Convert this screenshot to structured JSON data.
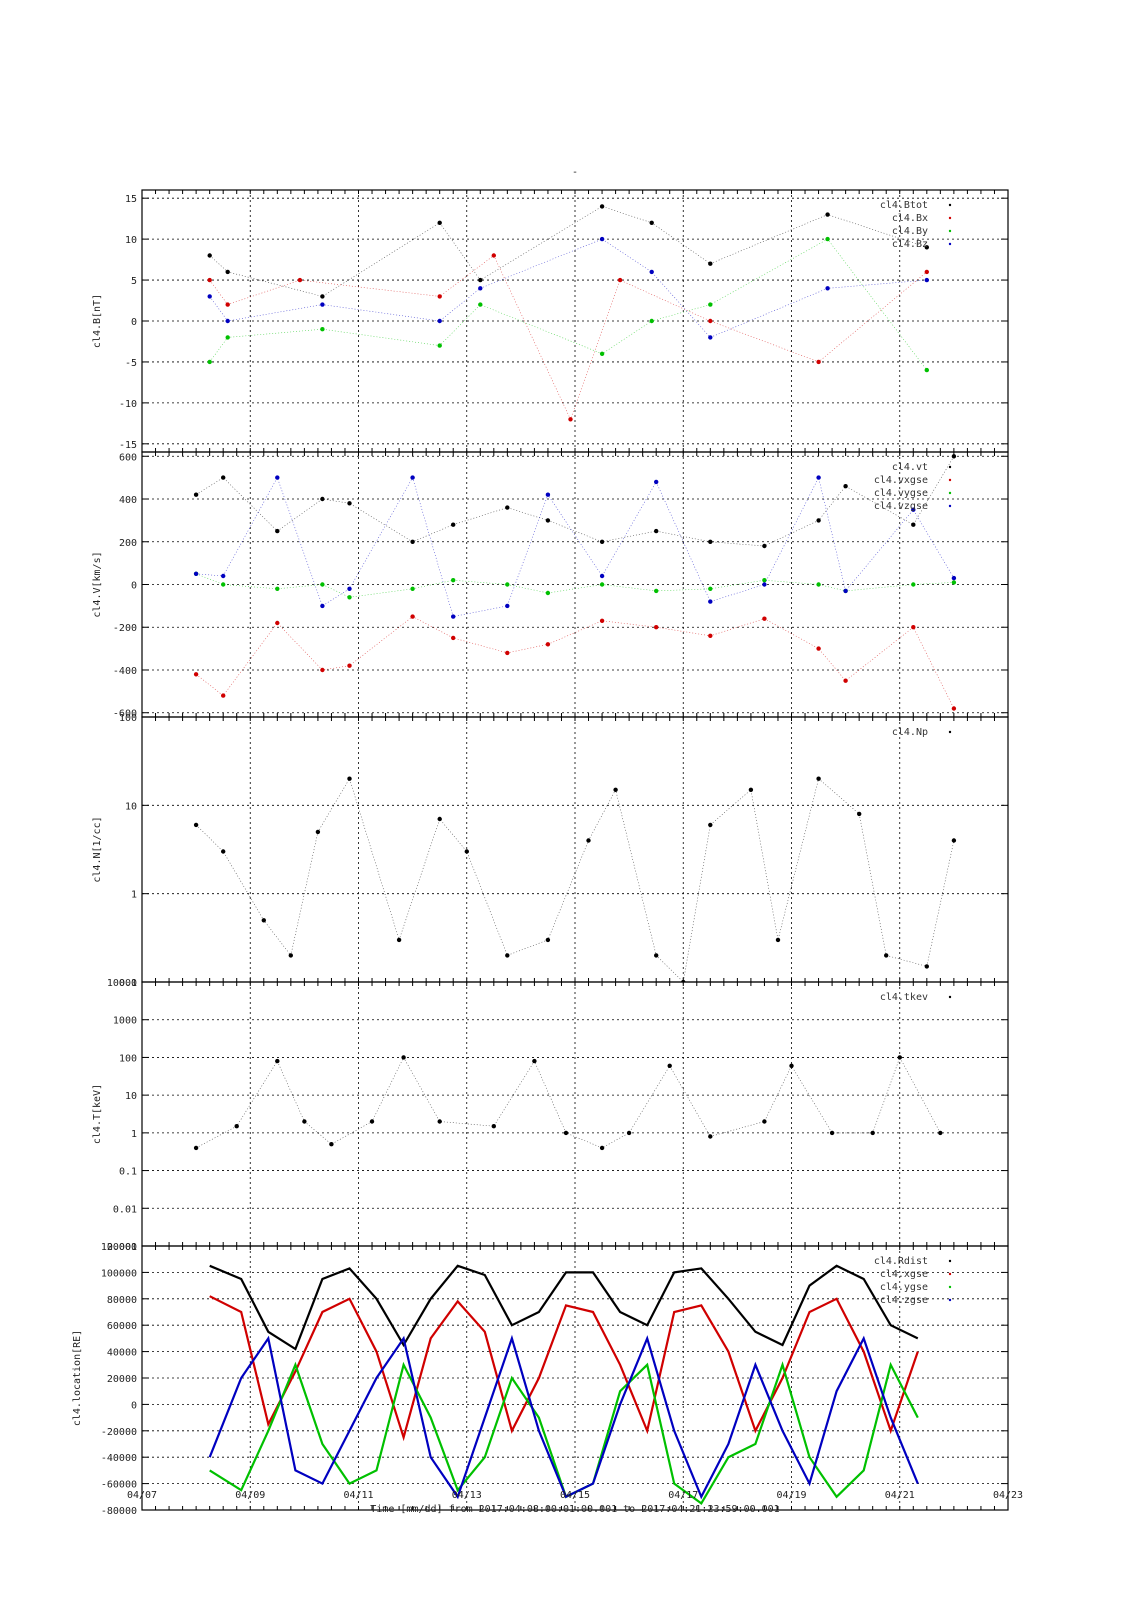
{
  "figure": {
    "title": "-",
    "xlabel": "Time [mm/dd]  from 2017:04:08:00:01:00.001  to  2017:04:21:23:59:00.001",
    "x_tick_labels": [
      "04/07",
      "04/09",
      "04/11",
      "04/13",
      "04/15",
      "04/17",
      "04/19",
      "04/21",
      "04/23"
    ],
    "colors": {
      "black": "#000000",
      "red": "#d00000",
      "green": "#00c000",
      "blue": "#0000c0"
    }
  },
  "chart_data": [
    {
      "type": "scatter",
      "ylabel": "cl4.B[nT]",
      "ylim": [
        -16,
        16
      ],
      "yscale": "linear",
      "y_tick_labels": [
        "15",
        "10",
        "5",
        "0",
        "-5",
        "-10",
        "-15"
      ],
      "y_ticks": [
        15,
        10,
        5,
        0,
        -5,
        -10,
        -15
      ],
      "x_range": [
        "2017-04-07",
        "2017-04-23"
      ],
      "legend": [
        "cl4.Btot",
        "cl4.Bx",
        "cl4.By",
        "cl4.Bz"
      ],
      "series": [
        {
          "name": "cl4.Btot",
          "color": "#000000",
          "x": [
            "2017-04-08 06:00",
            "2017-04-08 14:00",
            "2017-04-10 08:00",
            "2017-04-12 12:00",
            "2017-04-13 06:00",
            "2017-04-15 12:00",
            "2017-04-16 10:00",
            "2017-04-17 12:00",
            "2017-04-19 16:00",
            "2017-04-21 12:00"
          ],
          "y": [
            8,
            6,
            3,
            12,
            5,
            14,
            12,
            7,
            13,
            9
          ]
        },
        {
          "name": "cl4.Bx",
          "color": "#d00000",
          "x": [
            "2017-04-08 06:00",
            "2017-04-08 14:00",
            "2017-04-09 22:00",
            "2017-04-12 12:00",
            "2017-04-13 12:00",
            "2017-04-14 22:00",
            "2017-04-15 20:00",
            "2017-04-17 12:00",
            "2017-04-19 12:00",
            "2017-04-21 12:00"
          ],
          "y": [
            5,
            2,
            5,
            3,
            8,
            -12,
            5,
            0,
            -5,
            6
          ]
        },
        {
          "name": "cl4.By",
          "color": "#00c000",
          "x": [
            "2017-04-08 06:00",
            "2017-04-08 14:00",
            "2017-04-10 08:00",
            "2017-04-12 12:00",
            "2017-04-13 06:00",
            "2017-04-15 12:00",
            "2017-04-16 10:00",
            "2017-04-17 12:00",
            "2017-04-19 16:00",
            "2017-04-21 12:00"
          ],
          "y": [
            -5,
            -2,
            -1,
            -3,
            2,
            -4,
            0,
            2,
            10,
            -6
          ]
        },
        {
          "name": "cl4.Bz",
          "color": "#0000c0",
          "x": [
            "2017-04-08 06:00",
            "2017-04-08 14:00",
            "2017-04-10 08:00",
            "2017-04-12 12:00",
            "2017-04-13 06:00",
            "2017-04-15 12:00",
            "2017-04-16 10:00",
            "2017-04-17 12:00",
            "2017-04-19 16:00",
            "2017-04-21 12:00"
          ],
          "y": [
            3,
            0,
            2,
            0,
            4,
            10,
            6,
            -2,
            4,
            5
          ]
        }
      ]
    },
    {
      "type": "scatter",
      "ylabel": "cl4.V[km/s]",
      "ylim": [
        -620,
        620
      ],
      "yscale": "linear",
      "y_tick_labels": [
        "600",
        "400",
        "200",
        "0",
        "-200",
        "-400",
        "-600"
      ],
      "y_ticks": [
        600,
        400,
        200,
        0,
        -200,
        -400,
        -600
      ],
      "x_range": [
        "2017-04-07",
        "2017-04-23"
      ],
      "legend": [
        "cl4.vt",
        "cl4.vxgse",
        "cl4.vygse",
        "cl4.vzgse"
      ],
      "series": [
        {
          "name": "cl4.vt",
          "color": "#000000",
          "x": [
            "2017-04-08 00:00",
            "2017-04-08 12:00",
            "2017-04-09 12:00",
            "2017-04-10 08:00",
            "2017-04-10 20:00",
            "2017-04-12 00:00",
            "2017-04-12 18:00",
            "2017-04-13 18:00",
            "2017-04-14 12:00",
            "2017-04-15 12:00",
            "2017-04-16 12:00",
            "2017-04-17 12:00",
            "2017-04-18 12:00",
            "2017-04-19 12:00",
            "2017-04-20 00:00",
            "2017-04-21 06:00",
            "2017-04-22 00:00"
          ],
          "y": [
            420,
            500,
            250,
            400,
            380,
            200,
            280,
            360,
            300,
            200,
            250,
            200,
            180,
            300,
            460,
            280,
            600
          ]
        },
        {
          "name": "cl4.vxgse",
          "color": "#d00000",
          "x": [
            "2017-04-08 00:00",
            "2017-04-08 12:00",
            "2017-04-09 12:00",
            "2017-04-10 08:00",
            "2017-04-10 20:00",
            "2017-04-12 00:00",
            "2017-04-12 18:00",
            "2017-04-13 18:00",
            "2017-04-14 12:00",
            "2017-04-15 12:00",
            "2017-04-16 12:00",
            "2017-04-17 12:00",
            "2017-04-18 12:00",
            "2017-04-19 12:00",
            "2017-04-20 00:00",
            "2017-04-21 06:00",
            "2017-04-22 00:00"
          ],
          "y": [
            -420,
            -520,
            -180,
            -400,
            -380,
            -150,
            -250,
            -320,
            -280,
            -170,
            -200,
            -240,
            -160,
            -300,
            -450,
            -200,
            -580
          ]
        },
        {
          "name": "cl4.vygse",
          "color": "#00c000",
          "x": [
            "2017-04-08 00:00",
            "2017-04-08 12:00",
            "2017-04-09 12:00",
            "2017-04-10 08:00",
            "2017-04-10 20:00",
            "2017-04-12 00:00",
            "2017-04-12 18:00",
            "2017-04-13 18:00",
            "2017-04-14 12:00",
            "2017-04-15 12:00",
            "2017-04-16 12:00",
            "2017-04-17 12:00",
            "2017-04-18 12:00",
            "2017-04-19 12:00",
            "2017-04-20 00:00",
            "2017-04-21 06:00",
            "2017-04-22 00:00"
          ],
          "y": [
            50,
            0,
            -20,
            0,
            -60,
            -20,
            20,
            0,
            -40,
            0,
            -30,
            -20,
            20,
            0,
            -30,
            0,
            10
          ]
        },
        {
          "name": "cl4.vzgse",
          "color": "#0000c0",
          "x": [
            "2017-04-08 00:00",
            "2017-04-08 12:00",
            "2017-04-09 12:00",
            "2017-04-10 08:00",
            "2017-04-10 20:00",
            "2017-04-12 00:00",
            "2017-04-12 18:00",
            "2017-04-13 18:00",
            "2017-04-14 12:00",
            "2017-04-15 12:00",
            "2017-04-16 12:00",
            "2017-04-17 12:00",
            "2017-04-18 12:00",
            "2017-04-19 12:00",
            "2017-04-20 00:00",
            "2017-04-21 06:00",
            "2017-04-22 00:00"
          ],
          "y": [
            50,
            40,
            500,
            -100,
            -20,
            500,
            -150,
            -100,
            420,
            40,
            480,
            -80,
            0,
            500,
            -30,
            350,
            30
          ]
        }
      ]
    },
    {
      "type": "scatter",
      "ylabel": "cl4.N[1/cc]",
      "ylim": [
        0.1,
        100
      ],
      "yscale": "log",
      "y_tick_labels": [
        "100",
        "10",
        "1",
        "0.1"
      ],
      "y_ticks": [
        100,
        10,
        1,
        0.1
      ],
      "x_range": [
        "2017-04-07",
        "2017-04-23"
      ],
      "legend": [
        "cl4.Np"
      ],
      "series": [
        {
          "name": "cl4.Np",
          "color": "#000000",
          "x": [
            "2017-04-08 00:00",
            "2017-04-08 12:00",
            "2017-04-09 06:00",
            "2017-04-09 18:00",
            "2017-04-10 06:00",
            "2017-04-10 20:00",
            "2017-04-11 18:00",
            "2017-04-12 12:00",
            "2017-04-13 00:00",
            "2017-04-13 18:00",
            "2017-04-14 12:00",
            "2017-04-15 06:00",
            "2017-04-15 18:00",
            "2017-04-16 12:00",
            "2017-04-17 00:00",
            "2017-04-17 12:00",
            "2017-04-18 06:00",
            "2017-04-18 18:00",
            "2017-04-19 12:00",
            "2017-04-20 06:00",
            "2017-04-20 18:00",
            "2017-04-21 12:00",
            "2017-04-22 00:00"
          ],
          "y": [
            6,
            3,
            0.5,
            0.2,
            5,
            20,
            0.3,
            7,
            3,
            0.2,
            0.3,
            4,
            15,
            0.2,
            0.1,
            6,
            15,
            0.3,
            20,
            8,
            0.2,
            0.15,
            4
          ]
        }
      ]
    },
    {
      "type": "scatter",
      "ylabel": "cl4.T[keV]",
      "ylim": [
        0.001,
        10000
      ],
      "yscale": "log",
      "y_tick_labels": [
        "10000",
        "1000",
        "100",
        "10",
        "1",
        "0.1",
        "0.01",
        "0.001"
      ],
      "y_ticks": [
        10000,
        1000,
        100,
        10,
        1,
        0.1,
        0.01,
        0.001
      ],
      "x_range": [
        "2017-04-07",
        "2017-04-23"
      ],
      "legend": [
        "cl4.tkev"
      ],
      "series": [
        {
          "name": "cl4.tkev",
          "color": "#000000",
          "x": [
            "2017-04-08 00:00",
            "2017-04-08 18:00",
            "2017-04-09 12:00",
            "2017-04-10 00:00",
            "2017-04-10 12:00",
            "2017-04-11 06:00",
            "2017-04-11 20:00",
            "2017-04-12 12:00",
            "2017-04-13 12:00",
            "2017-04-14 06:00",
            "2017-04-14 20:00",
            "2017-04-15 12:00",
            "2017-04-16 00:00",
            "2017-04-16 18:00",
            "2017-04-17 12:00",
            "2017-04-18 12:00",
            "2017-04-19 00:00",
            "2017-04-19 18:00",
            "2017-04-20 12:00",
            "2017-04-21 00:00",
            "2017-04-21 18:00"
          ],
          "y": [
            0.4,
            1.5,
            80,
            2,
            0.5,
            2,
            100,
            2,
            1.5,
            80,
            1,
            0.4,
            1,
            60,
            0.8,
            2,
            60,
            1,
            1,
            100,
            1
          ]
        }
      ]
    },
    {
      "type": "line",
      "ylabel": "cl4.location[RE]",
      "ylim": [
        -80000,
        120000
      ],
      "yscale": "linear",
      "y_tick_labels": [
        "120000",
        "100000",
        "80000",
        "60000",
        "40000",
        "20000",
        "0",
        "-20000",
        "-40000",
        "-60000",
        "-80000"
      ],
      "y_ticks": [
        120000,
        100000,
        80000,
        60000,
        40000,
        20000,
        0,
        -20000,
        -40000,
        -60000,
        -80000
      ],
      "x_range": [
        "2017-04-07",
        "2017-04-23"
      ],
      "legend": [
        "cl4.Rdist",
        "cl4.xgse",
        "cl4.ygse",
        "cl4.zgse"
      ],
      "series": [
        {
          "name": "cl4.Rdist",
          "color": "#000000",
          "x": [
            "2017-04-08 06:00",
            "2017-04-08 20:00",
            "2017-04-09 08:00",
            "2017-04-09 20:00",
            "2017-04-10 08:00",
            "2017-04-10 20:00",
            "2017-04-11 08:00",
            "2017-04-11 20:00",
            "2017-04-12 08:00",
            "2017-04-12 20:00",
            "2017-04-13 08:00",
            "2017-04-13 20:00",
            "2017-04-14 08:00",
            "2017-04-14 20:00",
            "2017-04-15 08:00",
            "2017-04-15 20:00",
            "2017-04-16 08:00",
            "2017-04-16 20:00",
            "2017-04-17 08:00",
            "2017-04-17 20:00",
            "2017-04-18 08:00",
            "2017-04-18 20:00",
            "2017-04-19 08:00",
            "2017-04-19 20:00",
            "2017-04-20 08:00",
            "2017-04-20 20:00",
            "2017-04-21 08:00"
          ],
          "y": [
            105000,
            95000,
            55000,
            42000,
            95000,
            103000,
            80000,
            45000,
            80000,
            105000,
            98000,
            60000,
            70000,
            100000,
            100000,
            70000,
            60000,
            100000,
            103000,
            80000,
            55000,
            45000,
            90000,
            105000,
            95000,
            60000,
            50000
          ]
        },
        {
          "name": "cl4.xgse",
          "color": "#d00000",
          "x": [
            "2017-04-08 06:00",
            "2017-04-08 20:00",
            "2017-04-09 08:00",
            "2017-04-09 20:00",
            "2017-04-10 08:00",
            "2017-04-10 20:00",
            "2017-04-11 08:00",
            "2017-04-11 20:00",
            "2017-04-12 08:00",
            "2017-04-12 20:00",
            "2017-04-13 08:00",
            "2017-04-13 20:00",
            "2017-04-14 08:00",
            "2017-04-14 20:00",
            "2017-04-15 08:00",
            "2017-04-15 20:00",
            "2017-04-16 08:00",
            "2017-04-16 20:00",
            "2017-04-17 08:00",
            "2017-04-17 20:00",
            "2017-04-18 08:00",
            "2017-04-18 20:00",
            "2017-04-19 08:00",
            "2017-04-19 20:00",
            "2017-04-20 08:00",
            "2017-04-20 20:00",
            "2017-04-21 08:00"
          ],
          "y": [
            82000,
            70000,
            -15000,
            25000,
            70000,
            80000,
            40000,
            -25000,
            50000,
            78000,
            55000,
            -20000,
            20000,
            75000,
            70000,
            30000,
            -20000,
            70000,
            75000,
            40000,
            -20000,
            20000,
            70000,
            80000,
            40000,
            -20000,
            40000
          ]
        },
        {
          "name": "cl4.ygse",
          "color": "#00c000",
          "x": [
            "2017-04-08 06:00",
            "2017-04-08 20:00",
            "2017-04-09 08:00",
            "2017-04-09 20:00",
            "2017-04-10 08:00",
            "2017-04-10 20:00",
            "2017-04-11 08:00",
            "2017-04-11 20:00",
            "2017-04-12 08:00",
            "2017-04-12 20:00",
            "2017-04-13 08:00",
            "2017-04-13 20:00",
            "2017-04-14 08:00",
            "2017-04-14 20:00",
            "2017-04-15 08:00",
            "2017-04-15 20:00",
            "2017-04-16 08:00",
            "2017-04-16 20:00",
            "2017-04-17 08:00",
            "2017-04-17 20:00",
            "2017-04-18 08:00",
            "2017-04-18 20:00",
            "2017-04-19 08:00",
            "2017-04-19 20:00",
            "2017-04-20 08:00",
            "2017-04-20 20:00",
            "2017-04-21 08:00"
          ],
          "y": [
            -50000,
            -65000,
            -20000,
            30000,
            -30000,
            -60000,
            -50000,
            30000,
            -10000,
            -65000,
            -40000,
            20000,
            -10000,
            -70000,
            -60000,
            10000,
            30000,
            -60000,
            -75000,
            -40000,
            -30000,
            30000,
            -40000,
            -70000,
            -50000,
            30000,
            -10000
          ]
        },
        {
          "name": "cl4.zgse",
          "color": "#0000c0",
          "x": [
            "2017-04-08 06:00",
            "2017-04-08 20:00",
            "2017-04-09 08:00",
            "2017-04-09 20:00",
            "2017-04-10 08:00",
            "2017-04-10 20:00",
            "2017-04-11 08:00",
            "2017-04-11 20:00",
            "2017-04-12 08:00",
            "2017-04-12 20:00",
            "2017-04-13 08:00",
            "2017-04-13 20:00",
            "2017-04-14 08:00",
            "2017-04-14 20:00",
            "2017-04-15 08:00",
            "2017-04-15 20:00",
            "2017-04-16 08:00",
            "2017-04-16 20:00",
            "2017-04-17 08:00",
            "2017-04-17 20:00",
            "2017-04-18 08:00",
            "2017-04-18 20:00",
            "2017-04-19 08:00",
            "2017-04-19 20:00",
            "2017-04-20 08:00",
            "2017-04-20 20:00",
            "2017-04-21 08:00"
          ],
          "y": [
            -40000,
            20000,
            50000,
            -50000,
            -60000,
            -20000,
            20000,
            50000,
            -40000,
            -70000,
            -10000,
            50000,
            -20000,
            -70000,
            -60000,
            0,
            50000,
            -20000,
            -70000,
            -30000,
            30000,
            -20000,
            -60000,
            10000,
            50000,
            -10000,
            -60000
          ]
        }
      ]
    }
  ]
}
